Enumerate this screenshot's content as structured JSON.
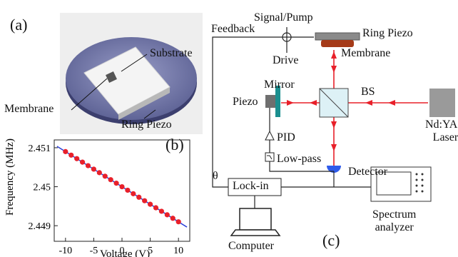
{
  "panel_a": {
    "label": "(a)",
    "substrate_label": "Substrate",
    "membrane_label": "Membrane",
    "ring_piezo_label": "Ring Piezo"
  },
  "panel_b": {
    "label": "(b)"
  },
  "panel_c": {
    "label": "(c)",
    "signal_pump": "Signal/Pump",
    "feedback": "Feedback",
    "ring_piezo": "Ring Piezo",
    "membrane": "Membrane",
    "drive": "Drive",
    "mirror": "Mirror",
    "bs": "BS",
    "piezo": "Piezo",
    "laser": "Nd:YAG\nLaser",
    "pid": "PID",
    "low_pass": "Low-pass",
    "detector": "Detector",
    "theta": "θ",
    "lock_in": "Lock-in",
    "spectrum_analyzer": "Spectrum\nanalyzer",
    "computer": "Computer"
  },
  "colors": {
    "beam": "#e8202a",
    "fit_line": "#2a3fd8",
    "point": "#e8202a",
    "mirror": "#1b8f8f",
    "detector": "#2f5bea",
    "membrane": "#a53a18",
    "ring": "#6f74a8"
  },
  "chart_data": {
    "type": "scatter",
    "xlabel": "Voltage (V)",
    "ylabel": "Frequency (MHz)",
    "xlim": [
      -12,
      12
    ],
    "ylim": [
      2.4486,
      2.4512
    ],
    "xticks": [
      -10,
      -5,
      0,
      5,
      10
    ],
    "yticks": [
      2.449,
      2.45,
      2.451
    ],
    "ytick_labels": [
      "2.449",
      "2.45",
      "2.451"
    ],
    "grid": false,
    "series": [
      {
        "points": [
          [
            -10,
            2.4509
          ],
          [
            -9,
            2.45081
          ],
          [
            -8,
            2.45072
          ],
          [
            -7,
            2.45063
          ],
          [
            -6,
            2.45054
          ],
          [
            -5,
            2.45045
          ],
          [
            -4,
            2.45036
          ],
          [
            -3,
            2.45027
          ],
          [
            -2,
            2.45018
          ],
          [
            -1,
            2.45009
          ],
          [
            0,
            2.45
          ],
          [
            1,
            2.44991
          ],
          [
            2,
            2.44982
          ],
          [
            3,
            2.44973
          ],
          [
            4,
            2.44964
          ],
          [
            5,
            2.44955
          ],
          [
            6,
            2.44946
          ],
          [
            7,
            2.44937
          ],
          [
            8,
            2.44928
          ],
          [
            9,
            2.44919
          ],
          [
            10,
            2.4491
          ]
        ]
      }
    ],
    "fit": {
      "slope": -9e-05,
      "intercept": 2.45
    }
  }
}
